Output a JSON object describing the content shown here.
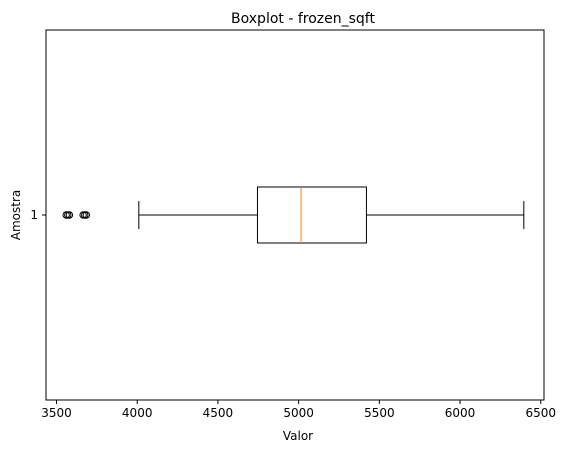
{
  "chart_data": {
    "type": "boxplot",
    "orientation": "horizontal",
    "title": "Boxplot - frozen_sqft",
    "xlabel": "Valor",
    "ylabel": "Amostra",
    "xlim": [
      3435,
      6520
    ],
    "xticks": [
      3500,
      4000,
      4500,
      5000,
      5500,
      6000,
      6500
    ],
    "xtick_labels": [
      "3500",
      "4000",
      "4500",
      "5000",
      "5500",
      "6000",
      "6500"
    ],
    "yticks": [
      1
    ],
    "ytick_labels": [
      "1"
    ],
    "grid": false,
    "boxes": [
      {
        "category": "1",
        "whisker_low": 4010,
        "q1": 4745,
        "median": 5015,
        "q3": 5420,
        "whisker_high": 6395,
        "outliers": [
          3560,
          3570,
          3580,
          3665,
          3675,
          3685
        ]
      }
    ],
    "colors": {
      "box": "#000000",
      "median": "#ff7f0e",
      "outlier": "#000000"
    }
  }
}
